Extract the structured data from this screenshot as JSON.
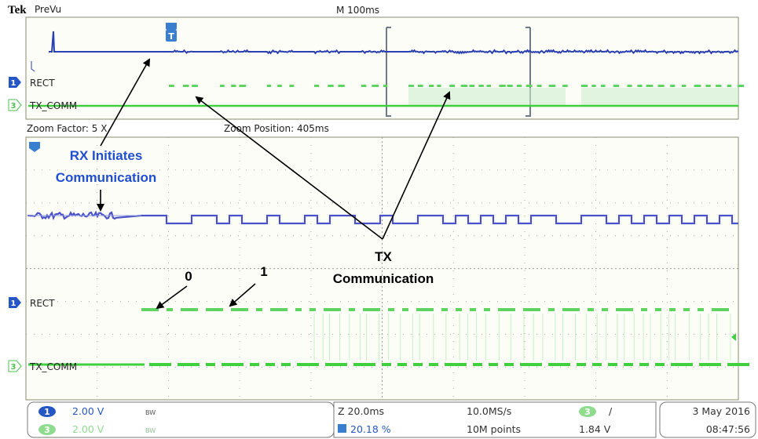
{
  "header": {
    "brand": "Tek",
    "mode": "PreVu",
    "timebase": "M 100ms"
  },
  "overview": {
    "channels": [
      {
        "number": "1",
        "label": "RECT"
      },
      {
        "number": "3",
        "label": "TX_COMM"
      }
    ]
  },
  "zoom": {
    "factor": "Zoom Factor: 5 X",
    "position": "Zoom Position: 405ms",
    "channels": [
      {
        "number": "1",
        "label": "RECT"
      },
      {
        "number": "3",
        "label": "TX_COMM"
      }
    ]
  },
  "annotations": {
    "rx": [
      "RX Initiates",
      "Communication"
    ],
    "tx": [
      "TX",
      "Communication"
    ],
    "bit0": "0",
    "bit1": "1"
  },
  "status": {
    "ch1": {
      "number": "1",
      "scale": "2.00 V",
      "bw": "BW"
    },
    "ch3": {
      "number": "3",
      "scale": "2.00 V",
      "bw": "BW"
    },
    "zoom_time": "Z 20.0ms",
    "trigger_position": "20.18 %",
    "sample_rate": "10.0MS/s",
    "record_length": "10M points",
    "trigger_source": "3",
    "trigger_slope": "/",
    "trigger_level": "1.84 V",
    "date": "3 May 2016",
    "time": "08:47:56"
  }
}
